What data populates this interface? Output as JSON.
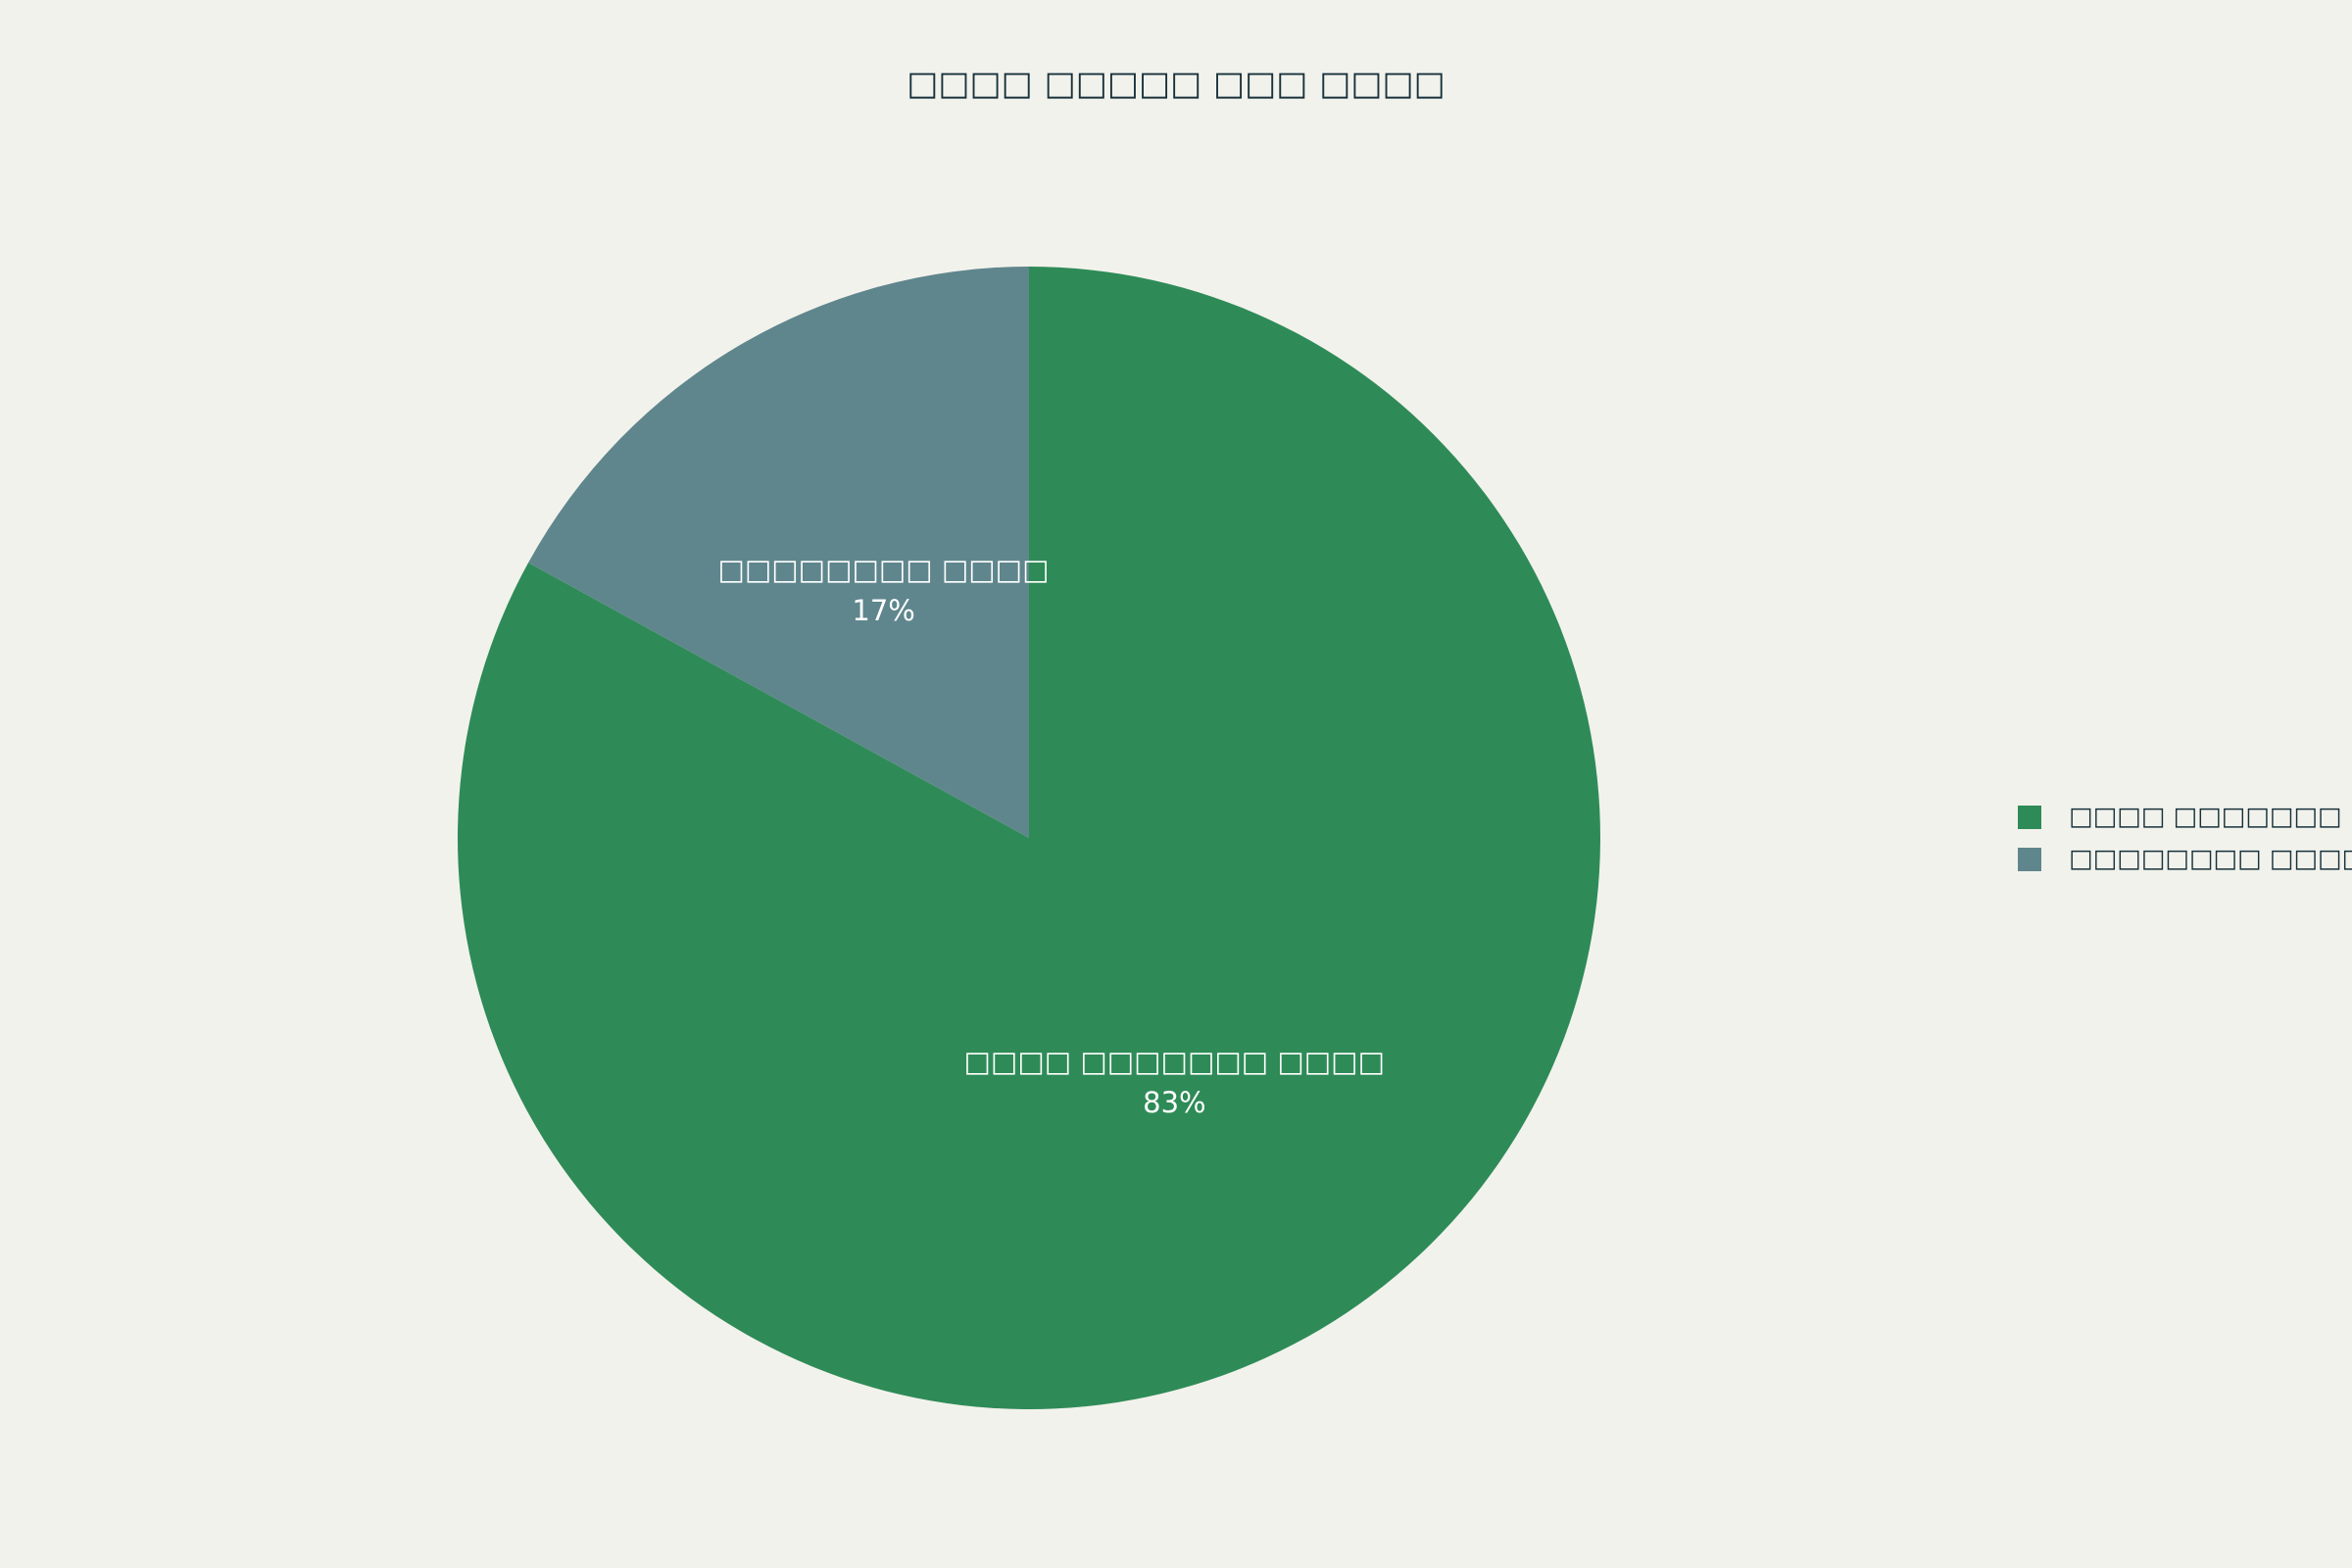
{
  "chart_data": {
    "type": "pie",
    "title": "□□□□ □□□□□ □□□ □□□□",
    "categories": [
      "□□□□ □□□□□□□ □□□□",
      "□□□□□□□□ □□□□"
    ],
    "values": [
      83,
      17
    ],
    "value_labels": [
      "83%",
      "17%"
    ],
    "colors": [
      "#2e8b57",
      "#5f868d"
    ],
    "direction": "clockwise",
    "legend": "right"
  }
}
